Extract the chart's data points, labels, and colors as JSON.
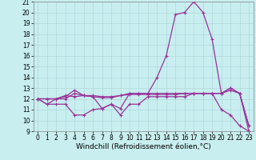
{
  "x": [
    0,
    1,
    2,
    3,
    4,
    5,
    6,
    7,
    8,
    9,
    10,
    11,
    12,
    13,
    14,
    15,
    16,
    17,
    18,
    19,
    20,
    21,
    22,
    23
  ],
  "line1": [
    12,
    11.5,
    12,
    12,
    12.5,
    12.3,
    12.2,
    11.1,
    11.5,
    11.1,
    12.5,
    12.5,
    12.5,
    14,
    16,
    19.8,
    20,
    21,
    20,
    17.5,
    12.5,
    12.8,
    12.5,
    9.0
  ],
  "line2": [
    12,
    12,
    12,
    12.2,
    12.8,
    12.3,
    12.2,
    12.1,
    12.1,
    12.3,
    12.5,
    12.5,
    12.5,
    12.5,
    12.5,
    12.5,
    12.5,
    12.5,
    12.5,
    12.5,
    12.5,
    13.0,
    12.5,
    9.5
  ],
  "line3": [
    12,
    12,
    12,
    12.3,
    12.2,
    12.3,
    12.3,
    12.2,
    12.2,
    12.3,
    12.4,
    12.4,
    12.4,
    12.4,
    12.4,
    12.4,
    12.5,
    12.5,
    12.5,
    12.5,
    12.5,
    13.0,
    12.5,
    9.5
  ],
  "line4": [
    12,
    11.5,
    11.5,
    11.5,
    10.5,
    10.5,
    11.0,
    11.1,
    11.5,
    10.5,
    11.5,
    11.5,
    12.2,
    12.2,
    12.2,
    12.2,
    12.2,
    12.5,
    12.5,
    12.5,
    11.0,
    10.5,
    9.5,
    9.0
  ],
  "ylim": [
    9,
    21
  ],
  "xlim": [
    -0.5,
    23.5
  ],
  "yticks": [
    9,
    10,
    11,
    12,
    13,
    14,
    15,
    16,
    17,
    18,
    19,
    20,
    21
  ],
  "xticks": [
    0,
    1,
    2,
    3,
    4,
    5,
    6,
    7,
    8,
    9,
    10,
    11,
    12,
    13,
    14,
    15,
    16,
    17,
    18,
    19,
    20,
    21,
    22,
    23
  ],
  "xlabel": "Windchill (Refroidissement éolien,°C)",
  "line_color": "#993399",
  "bg_color": "#c8eef0",
  "grid_color": "#b0d8da",
  "marker": "+",
  "markersize": 3,
  "linewidth": 0.9,
  "tick_fontsize": 5.5,
  "xlabel_fontsize": 6.5
}
